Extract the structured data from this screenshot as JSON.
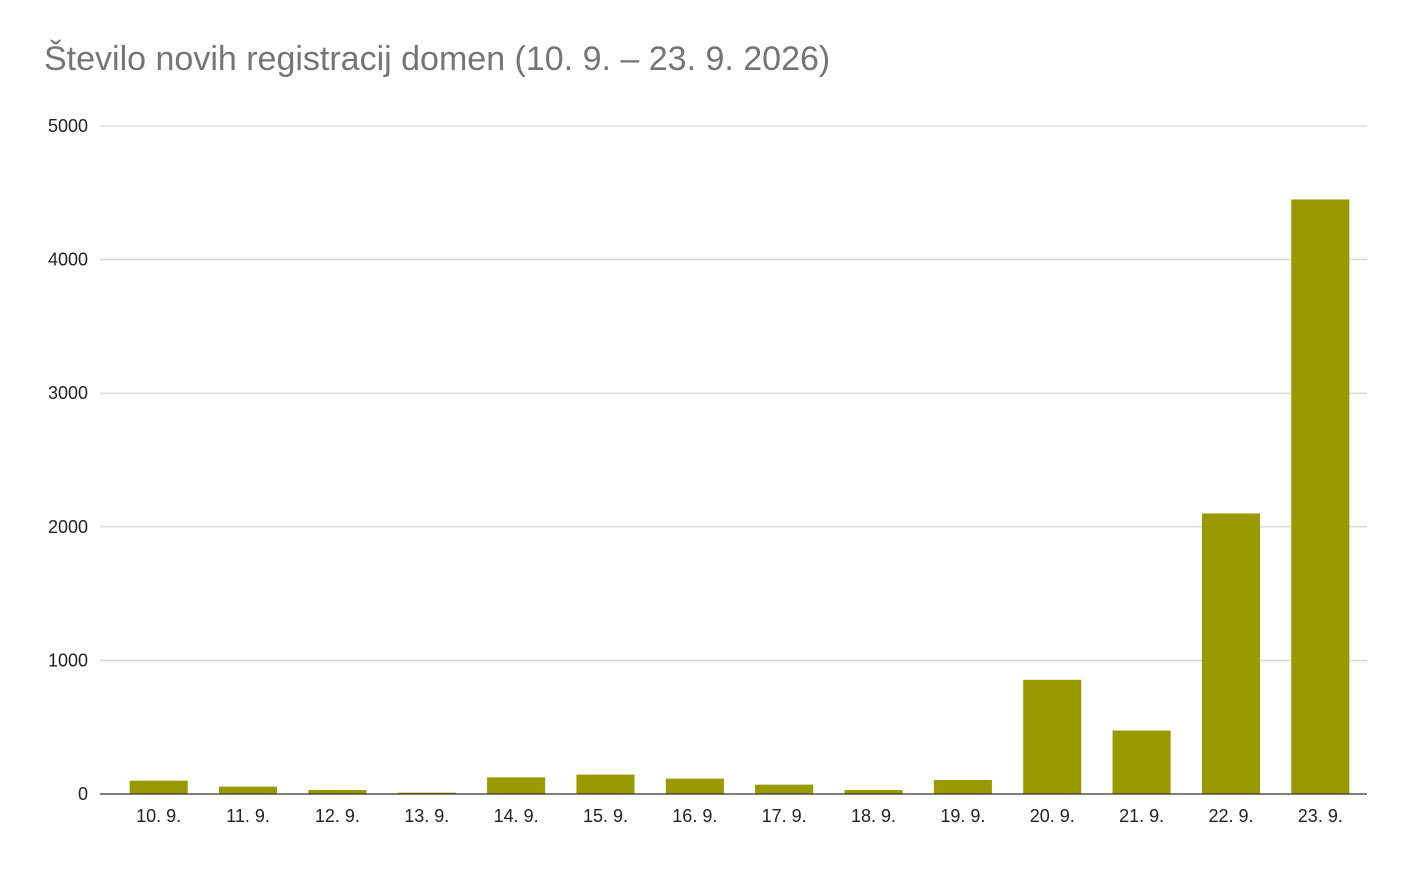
{
  "chart_data": {
    "type": "bar",
    "title": "Število novih registracij domen (10. 9. – 23. 9. 2026)",
    "xlabel": "",
    "ylabel": "",
    "categories": [
      "10. 9.",
      "11. 9.",
      "12. 9.",
      "13. 9.",
      "14. 9.",
      "15. 9.",
      "16. 9.",
      "17. 9.",
      "18. 9.",
      "19. 9.",
      "20. 9.",
      "21. 9.",
      "22. 9.",
      "23. 9."
    ],
    "values": [
      100,
      55,
      30,
      10,
      125,
      145,
      115,
      70,
      30,
      105,
      855,
      475,
      2100,
      4450
    ],
    "ylim": [
      0,
      5000
    ],
    "yticks": [
      0,
      1000,
      2000,
      3000,
      4000,
      5000
    ],
    "grid": true,
    "legend": "none",
    "bar_color": "#999900",
    "grid_color": "#cccccc",
    "axis_color": "#333333"
  }
}
